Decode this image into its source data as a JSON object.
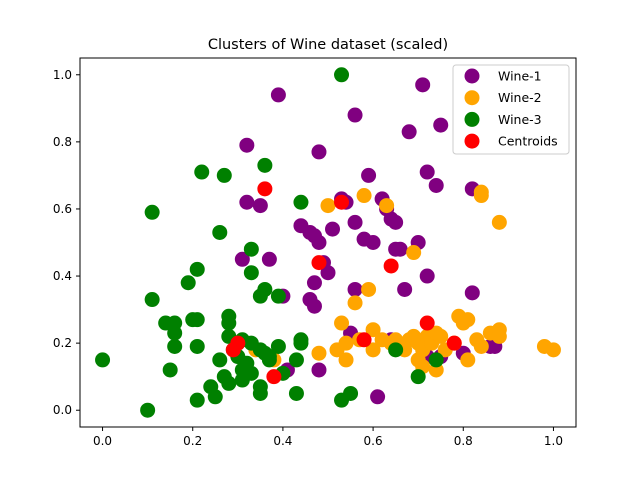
{
  "chart_data": {
    "type": "scatter",
    "title": "Clusters of Wine dataset (scaled)",
    "xlabel": "",
    "ylabel": "",
    "xlim": [
      -0.05,
      1.05
    ],
    "ylim": [
      -0.05,
      1.05
    ],
    "xticks": [
      "0.0",
      "0.2",
      "0.4",
      "0.6",
      "0.8",
      "1.0"
    ],
    "yticks": [
      "0.0",
      "0.2",
      "0.4",
      "0.6",
      "0.8",
      "1.0"
    ],
    "grid": false,
    "legend_position": "top-right",
    "series": [
      {
        "name": "Wine-1",
        "color": "#800080",
        "points": [
          [
            0.39,
            0.94
          ],
          [
            0.71,
            0.97
          ],
          [
            0.56,
            0.88
          ],
          [
            0.75,
            0.85
          ],
          [
            0.68,
            0.83
          ],
          [
            0.32,
            0.79
          ],
          [
            0.48,
            0.77
          ],
          [
            0.59,
            0.7
          ],
          [
            0.72,
            0.71
          ],
          [
            0.62,
            0.63
          ],
          [
            0.74,
            0.67
          ],
          [
            0.82,
            0.66
          ],
          [
            0.32,
            0.62
          ],
          [
            0.35,
            0.61
          ],
          [
            0.53,
            0.63
          ],
          [
            0.54,
            0.62
          ],
          [
            0.63,
            0.6
          ],
          [
            0.64,
            0.57
          ],
          [
            0.65,
            0.56
          ],
          [
            0.44,
            0.55
          ],
          [
            0.46,
            0.53
          ],
          [
            0.47,
            0.52
          ],
          [
            0.48,
            0.5
          ],
          [
            0.51,
            0.54
          ],
          [
            0.56,
            0.56
          ],
          [
            0.58,
            0.51
          ],
          [
            0.6,
            0.5
          ],
          [
            0.65,
            0.48
          ],
          [
            0.66,
            0.48
          ],
          [
            0.7,
            0.5
          ],
          [
            0.31,
            0.45
          ],
          [
            0.37,
            0.45
          ],
          [
            0.49,
            0.44
          ],
          [
            0.72,
            0.4
          ],
          [
            0.5,
            0.41
          ],
          [
            0.47,
            0.38
          ],
          [
            0.56,
            0.36
          ],
          [
            0.67,
            0.36
          ],
          [
            0.4,
            0.34
          ],
          [
            0.46,
            0.33
          ],
          [
            0.47,
            0.31
          ],
          [
            0.82,
            0.35
          ],
          [
            0.55,
            0.23
          ],
          [
            0.64,
            0.21
          ],
          [
            0.72,
            0.16
          ],
          [
            0.75,
            0.16
          ],
          [
            0.8,
            0.17
          ],
          [
            0.86,
            0.19
          ],
          [
            0.87,
            0.19
          ],
          [
            0.48,
            0.12
          ],
          [
            0.61,
            0.04
          ],
          [
            0.41,
            0.12
          ]
        ]
      },
      {
        "name": "Wine-2",
        "color": "#ffa500",
        "points": [
          [
            0.58,
            0.64
          ],
          [
            0.84,
            0.65
          ],
          [
            0.84,
            0.64
          ],
          [
            0.63,
            0.61
          ],
          [
            0.5,
            0.61
          ],
          [
            0.88,
            0.56
          ],
          [
            0.69,
            0.47
          ],
          [
            0.59,
            0.36
          ],
          [
            0.56,
            0.32
          ],
          [
            0.53,
            0.26
          ],
          [
            0.6,
            0.24
          ],
          [
            0.52,
            0.18
          ],
          [
            0.54,
            0.2
          ],
          [
            0.48,
            0.17
          ],
          [
            0.54,
            0.15
          ],
          [
            0.57,
            0.21
          ],
          [
            0.6,
            0.18
          ],
          [
            0.62,
            0.21
          ],
          [
            0.64,
            0.2
          ],
          [
            0.65,
            0.21
          ],
          [
            0.66,
            0.19
          ],
          [
            0.67,
            0.18
          ],
          [
            0.68,
            0.21
          ],
          [
            0.69,
            0.22
          ],
          [
            0.7,
            0.2
          ],
          [
            0.7,
            0.15
          ],
          [
            0.71,
            0.18
          ],
          [
            0.71,
            0.13
          ],
          [
            0.72,
            0.22
          ],
          [
            0.73,
            0.2
          ],
          [
            0.74,
            0.23
          ],
          [
            0.74,
            0.12
          ],
          [
            0.75,
            0.22
          ],
          [
            0.76,
            0.18
          ],
          [
            0.78,
            0.2
          ],
          [
            0.79,
            0.28
          ],
          [
            0.8,
            0.26
          ],
          [
            0.81,
            0.27
          ],
          [
            0.81,
            0.15
          ],
          [
            0.83,
            0.21
          ],
          [
            0.84,
            0.19
          ],
          [
            0.86,
            0.23
          ],
          [
            0.88,
            0.24
          ],
          [
            0.88,
            0.22
          ],
          [
            0.98,
            0.19
          ],
          [
            1.0,
            0.18
          ],
          [
            0.38,
            0.15
          ],
          [
            0.34,
            0.18
          ]
        ]
      },
      {
        "name": "Wine-3",
        "color": "#008000",
        "points": [
          [
            0.53,
            1.0
          ],
          [
            0.36,
            0.73
          ],
          [
            0.22,
            0.71
          ],
          [
            0.27,
            0.7
          ],
          [
            0.44,
            0.62
          ],
          [
            0.11,
            0.59
          ],
          [
            0.26,
            0.53
          ],
          [
            0.33,
            0.48
          ],
          [
            0.21,
            0.42
          ],
          [
            0.33,
            0.41
          ],
          [
            0.19,
            0.38
          ],
          [
            0.36,
            0.36
          ],
          [
            0.35,
            0.34
          ],
          [
            0.39,
            0.34
          ],
          [
            0.11,
            0.33
          ],
          [
            0.14,
            0.26
          ],
          [
            0.16,
            0.26
          ],
          [
            0.2,
            0.27
          ],
          [
            0.21,
            0.27
          ],
          [
            0.28,
            0.28
          ],
          [
            0.28,
            0.26
          ],
          [
            0.16,
            0.23
          ],
          [
            0.28,
            0.22
          ],
          [
            0.3,
            0.2
          ],
          [
            0.31,
            0.21
          ],
          [
            0.33,
            0.2
          ],
          [
            0.35,
            0.18
          ],
          [
            0.37,
            0.16
          ],
          [
            0.39,
            0.19
          ],
          [
            0.44,
            0.21
          ],
          [
            0.44,
            0.2
          ],
          [
            0.16,
            0.19
          ],
          [
            0.21,
            0.19
          ],
          [
            0.29,
            0.18
          ],
          [
            0.3,
            0.16
          ],
          [
            0.32,
            0.14
          ],
          [
            0.36,
            0.17
          ],
          [
            0.37,
            0.15
          ],
          [
            0.43,
            0.15
          ],
          [
            0.0,
            0.15
          ],
          [
            0.26,
            0.15
          ],
          [
            0.15,
            0.12
          ],
          [
            0.31,
            0.12
          ],
          [
            0.33,
            0.11
          ],
          [
            0.4,
            0.11
          ],
          [
            0.27,
            0.1
          ],
          [
            0.31,
            0.09
          ],
          [
            0.35,
            0.07
          ],
          [
            0.24,
            0.07
          ],
          [
            0.28,
            0.08
          ],
          [
            0.35,
            0.05
          ],
          [
            0.25,
            0.04
          ],
          [
            0.21,
            0.03
          ],
          [
            0.43,
            0.05
          ],
          [
            0.55,
            0.05
          ],
          [
            0.53,
            0.03
          ],
          [
            0.1,
            0.0
          ],
          [
            0.7,
            0.1
          ],
          [
            0.65,
            0.18
          ],
          [
            0.74,
            0.15
          ]
        ]
      },
      {
        "name": "Centroids",
        "color": "#ff0000",
        "points": [
          [
            0.36,
            0.66
          ],
          [
            0.53,
            0.62
          ],
          [
            0.48,
            0.44
          ],
          [
            0.64,
            0.43
          ],
          [
            0.58,
            0.21
          ],
          [
            0.72,
            0.26
          ],
          [
            0.78,
            0.2
          ],
          [
            0.3,
            0.2
          ],
          [
            0.29,
            0.18
          ],
          [
            0.38,
            0.1
          ]
        ]
      }
    ]
  }
}
